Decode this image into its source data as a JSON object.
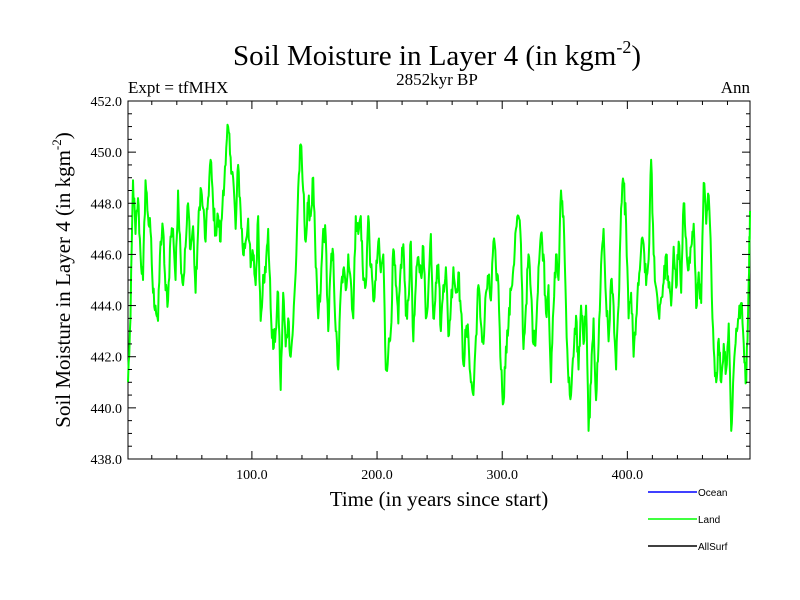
{
  "chart_data": {
    "type": "line",
    "title": "Soil Moisture in Layer 4 (in kgm",
    "title_superscript": "-2",
    "title_close": ")",
    "subtitle_center": "2852kyr BP",
    "subtitle_left": "Expt = tfMHX",
    "subtitle_right": "Ann",
    "xlabel": "Time (in years since start)",
    "ylabel": "Soil Moisture in Layer 4 (in kgm",
    "ylabel_superscript": "-2",
    "ylabel_close": ")",
    "xlim": [
      1,
      498
    ],
    "ylim": [
      438,
      452
    ],
    "xticks": [
      100,
      200,
      300,
      400
    ],
    "xtick_labels": [
      "100.0",
      "200.0",
      "300.0",
      "400.0"
    ],
    "yticks": [
      438,
      440,
      442,
      444,
      446,
      448,
      450,
      452
    ],
    "ytick_labels": [
      "438.0",
      "440.0",
      "442.0",
      "444.0",
      "446.0",
      "448.0",
      "450.0",
      "452.0"
    ],
    "legend": [
      {
        "name": "Ocean",
        "color": "#0000ff"
      },
      {
        "name": "Land",
        "color": "#00ff00"
      },
      {
        "name": "AllSurf",
        "color": "#000000"
      }
    ],
    "series": [
      {
        "name": "Land",
        "color": "#00ff00",
        "keypoints": [
          [
            1,
            441.0
          ],
          [
            3,
            443.5
          ],
          [
            5,
            448.9
          ],
          [
            7,
            446.8
          ],
          [
            9,
            448.2
          ],
          [
            11,
            446.0
          ],
          [
            13,
            445.0
          ],
          [
            15,
            448.9
          ],
          [
            17,
            447.5
          ],
          [
            19,
            446.9
          ],
          [
            21,
            444.5
          ],
          [
            23,
            444.0
          ],
          [
            25,
            443.4
          ],
          [
            27,
            446.5
          ],
          [
            29,
            447.0
          ],
          [
            31,
            444.6
          ],
          [
            33,
            444.2
          ],
          [
            35,
            446.7
          ],
          [
            37,
            447.0
          ],
          [
            39,
            445.0
          ],
          [
            41,
            448.5
          ],
          [
            43,
            446.0
          ],
          [
            45,
            444.8
          ],
          [
            47,
            446.3
          ],
          [
            49,
            448.0
          ],
          [
            51,
            446.2
          ],
          [
            53,
            447.1
          ],
          [
            55,
            444.5
          ],
          [
            57,
            446.9
          ],
          [
            59,
            448.6
          ],
          [
            61,
            447.8
          ],
          [
            63,
            446.5
          ],
          [
            65,
            448.2
          ],
          [
            67,
            449.7
          ],
          [
            69,
            448.0
          ],
          [
            71,
            446.8
          ],
          [
            73,
            447.5
          ],
          [
            75,
            446.5
          ],
          [
            77,
            448.5
          ],
          [
            79,
            449.5
          ],
          [
            81,
            451.0
          ],
          [
            83,
            449.8
          ],
          [
            85,
            449.0
          ],
          [
            87,
            447.0
          ],
          [
            89,
            449.5
          ],
          [
            91,
            447.7
          ],
          [
            93,
            446.0
          ],
          [
            95,
            446.5
          ],
          [
            97,
            447.4
          ],
          [
            99,
            445.5
          ],
          [
            101,
            446.0
          ],
          [
            103,
            444.8
          ],
          [
            105,
            447.5
          ],
          [
            107,
            443.4
          ],
          [
            109,
            445.2
          ],
          [
            111,
            445.3
          ],
          [
            113,
            447.0
          ],
          [
            115,
            443.9
          ],
          [
            117,
            442.3
          ],
          [
            119,
            443.0
          ],
          [
            121,
            444.5
          ],
          [
            123,
            440.7
          ],
          [
            125,
            444.5
          ],
          [
            127,
            442.4
          ],
          [
            129,
            443.5
          ],
          [
            131,
            442.0
          ],
          [
            133,
            443.3
          ],
          [
            135,
            445.3
          ],
          [
            137,
            448.6
          ],
          [
            139,
            450.3
          ],
          [
            141,
            448.5
          ],
          [
            143,
            446.5
          ],
          [
            145,
            448.0
          ],
          [
            147,
            447.5
          ],
          [
            149,
            449.0
          ],
          [
            151,
            445.5
          ],
          [
            153,
            443.5
          ],
          [
            155,
            444.6
          ],
          [
            157,
            447.0
          ],
          [
            159,
            446.7
          ],
          [
            161,
            443.0
          ],
          [
            163,
            445.5
          ],
          [
            165,
            446.0
          ],
          [
            167,
            443.0
          ],
          [
            169,
            441.5
          ],
          [
            171,
            444.5
          ],
          [
            173,
            445.4
          ],
          [
            175,
            444.6
          ],
          [
            177,
            446.0
          ],
          [
            179,
            445.0
          ],
          [
            181,
            443.5
          ],
          [
            183,
            447.5
          ],
          [
            185,
            446.8
          ],
          [
            187,
            447.5
          ],
          [
            189,
            445.0
          ],
          [
            191,
            444.8
          ],
          [
            193,
            447.5
          ],
          [
            195,
            445.5
          ],
          [
            197,
            444.2
          ],
          [
            199,
            445.0
          ],
          [
            201,
            446.5
          ],
          [
            203,
            445.3
          ],
          [
            205,
            446.0
          ],
          [
            207,
            441.5
          ],
          [
            209,
            442.2
          ],
          [
            211,
            443.0
          ],
          [
            213,
            446.2
          ],
          [
            215,
            444.8
          ],
          [
            217,
            443.3
          ],
          [
            219,
            445.6
          ],
          [
            221,
            446.4
          ],
          [
            223,
            443.6
          ],
          [
            225,
            444.2
          ],
          [
            227,
            446.5
          ],
          [
            229,
            442.6
          ],
          [
            231,
            444.8
          ],
          [
            233,
            445.9
          ],
          [
            235,
            445.2
          ],
          [
            237,
            446.3
          ],
          [
            239,
            443.5
          ],
          [
            241,
            444.6
          ],
          [
            243,
            446.8
          ],
          [
            245,
            443.5
          ],
          [
            247,
            444.9
          ],
          [
            249,
            445.6
          ],
          [
            251,
            443.0
          ],
          [
            253,
            444.8
          ],
          [
            255,
            445.5
          ],
          [
            257,
            442.8
          ],
          [
            259,
            444.0
          ],
          [
            261,
            445.5
          ],
          [
            263,
            444.5
          ],
          [
            265,
            445.3
          ],
          [
            267,
            443.8
          ],
          [
            269,
            441.7
          ],
          [
            271,
            443.0
          ],
          [
            273,
            442.8
          ],
          [
            275,
            441.0
          ],
          [
            277,
            440.5
          ],
          [
            279,
            442.8
          ],
          [
            281,
            444.8
          ],
          [
            283,
            443.3
          ],
          [
            285,
            442.5
          ],
          [
            287,
            444.5
          ],
          [
            289,
            445.0
          ],
          [
            291,
            444.2
          ],
          [
            293,
            446.5
          ],
          [
            295,
            445.5
          ],
          [
            297,
            444.8
          ],
          [
            299,
            441.5
          ],
          [
            301,
            440.2
          ],
          [
            303,
            442.4
          ],
          [
            305,
            443.2
          ],
          [
            307,
            444.6
          ],
          [
            309,
            445.5
          ],
          [
            311,
            447.0
          ],
          [
            313,
            447.5
          ],
          [
            315,
            446.4
          ],
          [
            317,
            442.3
          ],
          [
            319,
            444.0
          ],
          [
            321,
            446.0
          ],
          [
            323,
            444.5
          ],
          [
            325,
            442.5
          ],
          [
            327,
            443.0
          ],
          [
            329,
            445.5
          ],
          [
            331,
            446.8
          ],
          [
            333,
            446.0
          ],
          [
            335,
            443.7
          ],
          [
            337,
            444.8
          ],
          [
            339,
            441.0
          ],
          [
            341,
            443.9
          ],
          [
            343,
            446.0
          ],
          [
            345,
            445.0
          ],
          [
            347,
            448.5
          ],
          [
            349,
            447.5
          ],
          [
            351,
            443.9
          ],
          [
            353,
            441.0
          ],
          [
            355,
            440.5
          ],
          [
            357,
            442.0
          ],
          [
            359,
            443.6
          ],
          [
            361,
            441.5
          ],
          [
            363,
            444.0
          ],
          [
            365,
            442.5
          ],
          [
            367,
            444.0
          ],
          [
            369,
            439.1
          ],
          [
            371,
            441.0
          ],
          [
            373,
            443.5
          ],
          [
            375,
            440.3
          ],
          [
            377,
            442.5
          ],
          [
            379,
            445.6
          ],
          [
            381,
            447.0
          ],
          [
            383,
            444.2
          ],
          [
            385,
            442.6
          ],
          [
            387,
            445.0
          ],
          [
            389,
            444.0
          ],
          [
            391,
            441.5
          ],
          [
            393,
            444.0
          ],
          [
            395,
            447.8
          ],
          [
            397,
            448.8
          ],
          [
            399,
            447.2
          ],
          [
            401,
            443.5
          ],
          [
            403,
            444.5
          ],
          [
            405,
            442.0
          ],
          [
            407,
            443.5
          ],
          [
            409,
            444.8
          ],
          [
            411,
            446.2
          ],
          [
            413,
            446.4
          ],
          [
            415,
            444.8
          ],
          [
            417,
            445.8
          ],
          [
            419,
            449.7
          ],
          [
            421,
            446.0
          ],
          [
            423,
            444.7
          ],
          [
            425,
            443.7
          ],
          [
            427,
            444.3
          ],
          [
            429,
            444.9
          ],
          [
            431,
            446.0
          ],
          [
            433,
            444.7
          ],
          [
            435,
            444.0
          ],
          [
            437,
            446.3
          ],
          [
            439,
            444.7
          ],
          [
            441,
            446.5
          ],
          [
            443,
            444.5
          ],
          [
            445,
            448.0
          ],
          [
            447,
            446.6
          ],
          [
            449,
            445.4
          ],
          [
            451,
            446.3
          ],
          [
            453,
            447.2
          ],
          [
            455,
            443.9
          ],
          [
            457,
            445.3
          ],
          [
            459,
            444.1
          ],
          [
            461,
            448.8
          ],
          [
            463,
            447.2
          ],
          [
            465,
            448.3
          ],
          [
            467,
            445.6
          ],
          [
            469,
            442.3
          ],
          [
            471,
            441.0
          ],
          [
            473,
            442.7
          ],
          [
            475,
            441.0
          ],
          [
            477,
            442.5
          ],
          [
            479,
            441.5
          ],
          [
            481,
            443.3
          ],
          [
            483,
            439.1
          ],
          [
            485,
            441.5
          ],
          [
            487,
            443.1
          ],
          [
            489,
            443.5
          ],
          [
            491,
            444.1
          ],
          [
            493,
            442.5
          ],
          [
            495,
            441.0
          ],
          [
            497,
            445.0
          ],
          [
            498,
            447.7
          ]
        ]
      }
    ]
  }
}
